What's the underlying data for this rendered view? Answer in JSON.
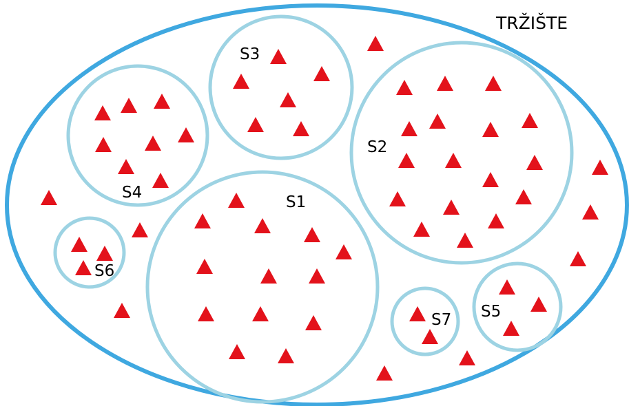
{
  "market_label": "TRŽIŠTE",
  "segments": [
    {
      "id": "s1",
      "label": "S1"
    },
    {
      "id": "s2",
      "label": "S2"
    },
    {
      "id": "s3",
      "label": "S3"
    },
    {
      "id": "s4",
      "label": "S4"
    },
    {
      "id": "s5",
      "label": "S5"
    },
    {
      "id": "s6",
      "label": "S6"
    },
    {
      "id": "s7",
      "label": "S7"
    }
  ],
  "colors": {
    "market_outline": "#3fa8e0",
    "segment_outline": "#9dd3e3",
    "triangle": "#e3121b"
  }
}
